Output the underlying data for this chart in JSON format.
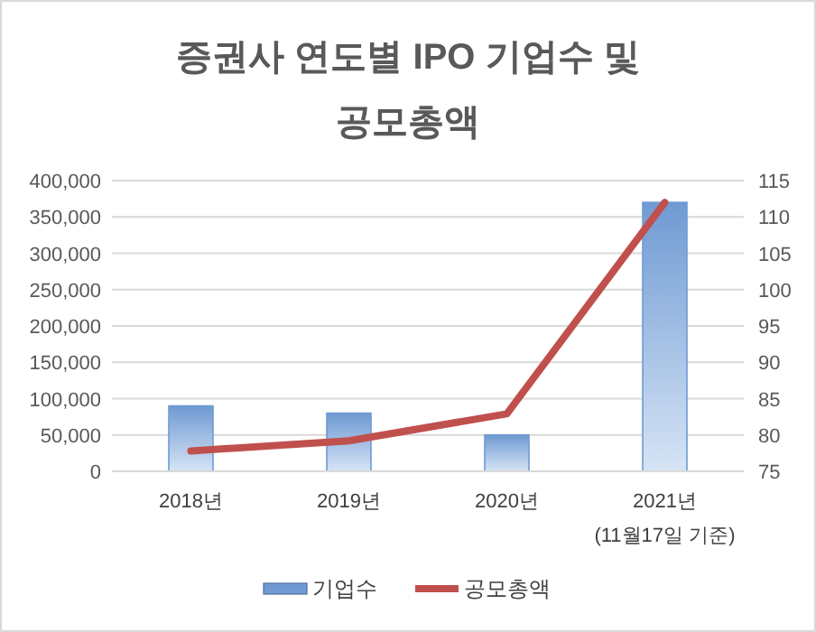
{
  "chart_data": {
    "type": "bar",
    "title": "증권사 연도별 IPO 기업수 및\n공모총액",
    "categories": [
      "2018년",
      "2019년",
      "2020년",
      "2021년\n(11월17일 기준)"
    ],
    "series": [
      {
        "name": "기업수",
        "color": "#6f9ad3",
        "values": [
          90000,
          80000,
          50000,
          370000
        ]
      },
      {
        "name": "공모총액",
        "type": "line",
        "axis": "y2",
        "color": "#c0504d",
        "values": [
          77.8,
          79.2,
          82.9,
          112
        ]
      }
    ],
    "ylim": [
      0,
      400000
    ],
    "yticks": [
      0,
      {
        "value": 50000,
        "label": "50,000"
      },
      {
        "value": 100000,
        "label": "100,000"
      },
      {
        "value": 150000,
        "label": "150,000"
      },
      {
        "value": 200000,
        "label": "200,000"
      },
      {
        "value": 250000,
        "label": "250,000"
      },
      {
        "value": 300000,
        "label": "300,000"
      },
      {
        "value": 350000,
        "label": "350,000"
      },
      {
        "value": 400000,
        "label": "400,000"
      }
    ],
    "y2lim": [
      75,
      115
    ],
    "y2ticks": [
      75,
      80,
      85,
      90,
      95,
      100,
      105,
      110,
      115
    ],
    "grid": "y",
    "legend": "bottom"
  }
}
